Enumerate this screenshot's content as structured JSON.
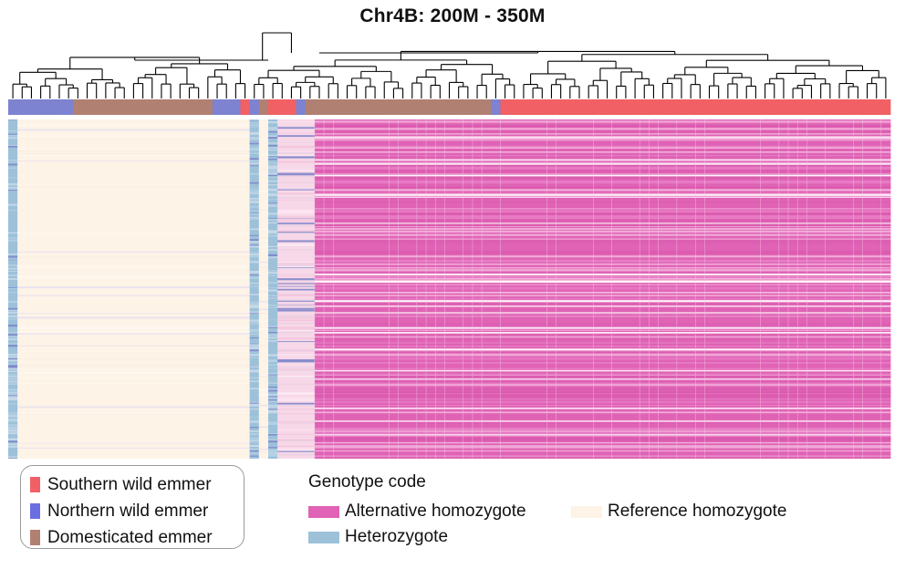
{
  "chart_data": {
    "type": "heatmap",
    "title": "Chr4B: 200M - 350M",
    "n_samples": 95,
    "sample_groups": [
      {
        "group": "northern",
        "count": 7
      },
      {
        "group": "domesticated",
        "count": 15
      },
      {
        "group": "northern",
        "count": 3
      },
      {
        "group": "southern",
        "count": 1
      },
      {
        "group": "northern",
        "count": 1
      },
      {
        "group": "domesticated",
        "count": 1
      },
      {
        "group": "southern",
        "count": 3
      },
      {
        "group": "northern",
        "count": 1
      },
      {
        "group": "domesticated",
        "count": 20
      },
      {
        "group": "northern",
        "count": 1
      },
      {
        "group": "southern",
        "count": 42
      }
    ],
    "genotype_blocks": [
      {
        "samples": 1,
        "genotype": "heterozygote"
      },
      {
        "samples": 25,
        "genotype": "reference_homozygote"
      },
      {
        "samples": 1,
        "genotype": "heterozygote"
      },
      {
        "samples": 1,
        "genotype": "reference_homozygote"
      },
      {
        "samples": 1,
        "genotype": "heterozygote"
      },
      {
        "samples": 4,
        "genotype": "mixed"
      },
      {
        "samples": 62,
        "genotype": "alternative_homozygote"
      }
    ],
    "dendrogram": "hierarchical clustering of samples; top split separates samples 1-26 from 27-95"
  },
  "legend": {
    "population": [
      {
        "label": "Southern wild emmer",
        "color": "#f06065"
      },
      {
        "label": "Northern wild emmer",
        "color": "#6a6ee0"
      },
      {
        "label": "Domesticated emmer",
        "color": "#b08072"
      }
    ],
    "genotype_title": "Genotype code",
    "genotype": [
      {
        "label": "Alternative homozygote",
        "color": "#e063b5"
      },
      {
        "label": "Heterozygote",
        "color": "#9cc1d9"
      },
      {
        "label": "Reference homozygote",
        "color": "#fdf3e7"
      }
    ]
  },
  "colors": {
    "southern": "#f06065",
    "northern": "#7d82d1",
    "domesticated": "#b08072",
    "alternative_homozygote": "#e063b5",
    "heterozygote": "#9cc1d9",
    "reference_homozygote": "#fdf3e7",
    "dendrogram": "#000000"
  }
}
